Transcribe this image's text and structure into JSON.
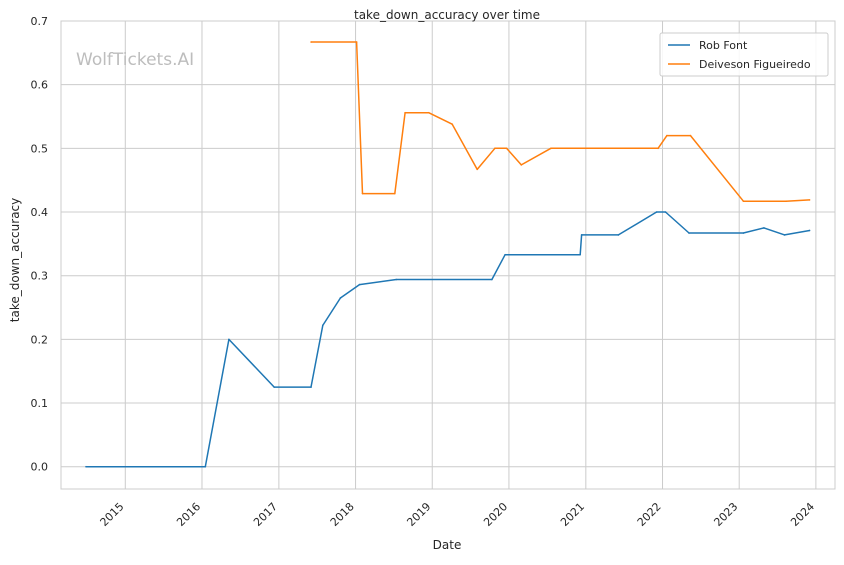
{
  "chart_data": {
    "type": "line",
    "title": "take_down_accuracy over time",
    "xlabel": "Date",
    "ylabel": "take_down_accuracy",
    "watermark": "WolfTickets.AI",
    "x_axis_type": "date",
    "xlim": [
      "2014-03-01",
      "2024-04-01"
    ],
    "ylim": [
      -0.035,
      0.7
    ],
    "x_ticks": [
      {
        "date": "2015-01-01",
        "label": "2015"
      },
      {
        "date": "2016-01-01",
        "label": "2016"
      },
      {
        "date": "2017-01-01",
        "label": "2017"
      },
      {
        "date": "2018-01-01",
        "label": "2018"
      },
      {
        "date": "2019-01-01",
        "label": "2019"
      },
      {
        "date": "2020-01-01",
        "label": "2020"
      },
      {
        "date": "2021-01-01",
        "label": "2021"
      },
      {
        "date": "2022-01-01",
        "label": "2022"
      },
      {
        "date": "2023-01-01",
        "label": "2023"
      },
      {
        "date": "2024-01-01",
        "label": "2024"
      }
    ],
    "y_ticks": [
      {
        "value": 0.0,
        "label": "0.0"
      },
      {
        "value": 0.1,
        "label": "0.1"
      },
      {
        "value": 0.2,
        "label": "0.2"
      },
      {
        "value": 0.3,
        "label": "0.3"
      },
      {
        "value": 0.4,
        "label": "0.4"
      },
      {
        "value": 0.5,
        "label": "0.5"
      },
      {
        "value": 0.6,
        "label": "0.6"
      },
      {
        "value": 0.7,
        "label": "0.7"
      }
    ],
    "grid": true,
    "legend_position": "top-right",
    "series": [
      {
        "name": "Rob Font",
        "color": "#1f77b4",
        "points": [
          {
            "x": "2014-06-28",
            "y": 0.0
          },
          {
            "x": "2016-01-17",
            "y": 0.0
          },
          {
            "x": "2016-05-08",
            "y": 0.2
          },
          {
            "x": "2016-12-10",
            "y": 0.125
          },
          {
            "x": "2017-06-03",
            "y": 0.125
          },
          {
            "x": "2017-07-29",
            "y": 0.222
          },
          {
            "x": "2017-10-21",
            "y": 0.265
          },
          {
            "x": "2018-01-20",
            "y": 0.286
          },
          {
            "x": "2018-07-14",
            "y": 0.294
          },
          {
            "x": "2019-10-12",
            "y": 0.294
          },
          {
            "x": "2019-12-14",
            "y": 0.333
          },
          {
            "x": "2020-12-05",
            "y": 0.333
          },
          {
            "x": "2020-12-12",
            "y": 0.364
          },
          {
            "x": "2021-06-05",
            "y": 0.364
          },
          {
            "x": "2021-12-04",
            "y": 0.4
          },
          {
            "x": "2022-01-15",
            "y": 0.4
          },
          {
            "x": "2022-05-07",
            "y": 0.367
          },
          {
            "x": "2023-01-21",
            "y": 0.367
          },
          {
            "x": "2023-04-29",
            "y": 0.375
          },
          {
            "x": "2023-08-05",
            "y": 0.364
          },
          {
            "x": "2023-12-02",
            "y": 0.371
          }
        ]
      },
      {
        "name": "Deiveson Figueiredo",
        "color": "#ff7f0e",
        "points": [
          {
            "x": "2017-06-03",
            "y": 0.667
          },
          {
            "x": "2018-01-06",
            "y": 0.667
          },
          {
            "x": "2018-02-03",
            "y": 0.429
          },
          {
            "x": "2018-07-07",
            "y": 0.429
          },
          {
            "x": "2018-08-25",
            "y": 0.556
          },
          {
            "x": "2018-12-15",
            "y": 0.556
          },
          {
            "x": "2019-04-06",
            "y": 0.538
          },
          {
            "x": "2019-08-03",
            "y": 0.467
          },
          {
            "x": "2019-10-26",
            "y": 0.5
          },
          {
            "x": "2019-12-21",
            "y": 0.5
          },
          {
            "x": "2020-02-29",
            "y": 0.474
          },
          {
            "x": "2020-07-19",
            "y": 0.5
          },
          {
            "x": "2021-12-11",
            "y": 0.5
          },
          {
            "x": "2022-01-22",
            "y": 0.52
          },
          {
            "x": "2022-05-14",
            "y": 0.52
          },
          {
            "x": "2023-01-21",
            "y": 0.417
          },
          {
            "x": "2023-08-12",
            "y": 0.417
          },
          {
            "x": "2023-12-02",
            "y": 0.419
          }
        ]
      }
    ]
  }
}
